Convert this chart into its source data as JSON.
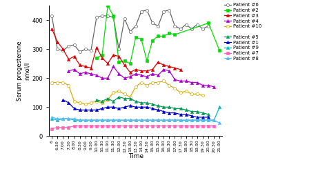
{
  "time_labels": [
    "6",
    "6.30",
    "7.00",
    "7.30",
    "8.00",
    "8.30",
    "9.00",
    "9.30",
    "10.00",
    "10.30",
    "11.00",
    "11.30",
    "12.00",
    "12.30",
    "13.00",
    "13.30",
    "14.00",
    "14.30",
    "15.00",
    "15.30",
    "16.00",
    "16.30",
    "17.00",
    "17.30",
    "18.00",
    "18.30",
    "19.00",
    "19.30",
    "20.00",
    "20.30",
    "21.00"
  ],
  "patients": {
    "Patient #6": {
      "color": "#666666",
      "marker": "o",
      "mfc": "white",
      "markersize": 3.0,
      "linewidth": 0.9,
      "data": [
        415,
        300,
        295,
        310,
        315,
        290,
        300,
        295,
        410,
        415,
        415,
        410,
        300,
        405,
        360,
        380,
        430,
        435,
        390,
        380,
        430,
        435,
        380,
        370,
        385,
        370,
        385,
        370,
        380,
        null,
        null
      ]
    },
    "Patient #2": {
      "color": "#00dd00",
      "marker": "s",
      "mfc": "#00dd00",
      "markersize": 3.0,
      "linewidth": 0.9,
      "data": [
        null,
        null,
        null,
        null,
        null,
        null,
        null,
        null,
        270,
        280,
        450,
        415,
        255,
        260,
        250,
        340,
        335,
        260,
        330,
        345,
        345,
        355,
        350,
        null,
        null,
        null,
        null,
        null,
        390,
        null,
        295
      ]
    },
    "Patient #3": {
      "color": "#dd0000",
      "marker": "^",
      "mfc": "#dd0000",
      "markersize": 3.0,
      "linewidth": 0.9,
      "data": [
        370,
        325,
        300,
        265,
        275,
        245,
        240,
        235,
        305,
        270,
        250,
        280,
        275,
        245,
        220,
        230,
        225,
        225,
        230,
        255,
        245,
        240,
        235,
        230,
        null,
        null,
        null,
        null,
        null,
        null,
        null
      ]
    },
    "Patient #4": {
      "color": "#aa00cc",
      "marker": "^",
      "mfc": "#aa00cc",
      "markersize": 3.0,
      "linewidth": 0.9,
      "data": [
        null,
        null,
        null,
        225,
        230,
        215,
        220,
        215,
        210,
        200,
        200,
        240,
        215,
        200,
        205,
        215,
        210,
        205,
        215,
        210,
        230,
        225,
        195,
        190,
        190,
        185,
        185,
        175,
        175,
        170,
        null
      ]
    },
    "Patient #10": {
      "color": "#ddaa00",
      "marker": "o",
      "mfc": "white",
      "markersize": 3.0,
      "linewidth": 0.9,
      "data": [
        185,
        185,
        185,
        175,
        120,
        115,
        110,
        115,
        120,
        115,
        125,
        150,
        155,
        145,
        135,
        170,
        185,
        175,
        185,
        185,
        190,
        175,
        165,
        150,
        155,
        145,
        145,
        140,
        null,
        null,
        null
      ]
    },
    "Patient #5": {
      "color": "#009955",
      "marker": "^",
      "mfc": "#009955",
      "markersize": 3.0,
      "linewidth": 0.9,
      "data": [
        null,
        null,
        null,
        null,
        null,
        null,
        null,
        null,
        125,
        120,
        130,
        120,
        135,
        130,
        130,
        120,
        115,
        115,
        110,
        105,
        100,
        100,
        95,
        95,
        90,
        85,
        85,
        80,
        75,
        null,
        null
      ]
    },
    "Patient #1": {
      "color": "#0000cc",
      "marker": "^",
      "mfc": "#0000cc",
      "markersize": 3.0,
      "linewidth": 0.9,
      "data": [
        null,
        null,
        125,
        115,
        95,
        90,
        90,
        90,
        90,
        95,
        100,
        100,
        95,
        100,
        105,
        100,
        100,
        100,
        95,
        90,
        85,
        80,
        80,
        75,
        75,
        70,
        65,
        65,
        65,
        null,
        null
      ]
    },
    "Patient #9": {
      "color": "#00bbbb",
      "marker": "^",
      "mfc": "#00bbbb",
      "markersize": 3.0,
      "linewidth": 0.9,
      "data": [
        60,
        55,
        60,
        60,
        55,
        55,
        55,
        55,
        55,
        55,
        55,
        55,
        55,
        55,
        55,
        55,
        55,
        55,
        55,
        55,
        55,
        55,
        55,
        55,
        55,
        55,
        55,
        55,
        55,
        55,
        100
      ]
    },
    "Patient #7": {
      "color": "#ff66bb",
      "marker": "s",
      "mfc": "#ff66bb",
      "markersize": 3.0,
      "linewidth": 0.9,
      "data": [
        25,
        30,
        30,
        30,
        35,
        35,
        35,
        35,
        35,
        35,
        35,
        35,
        35,
        35,
        35,
        35,
        35,
        35,
        35,
        35,
        35,
        35,
        35,
        35,
        35,
        35,
        35,
        35,
        35,
        35,
        null
      ]
    },
    "Patient #8": {
      "color": "#55bbff",
      "marker": "^",
      "mfc": "#55bbff",
      "markersize": 3.0,
      "linewidth": 0.9,
      "data": [
        65,
        60,
        60,
        60,
        60,
        55,
        55,
        55,
        55,
        55,
        55,
        55,
        55,
        55,
        55,
        55,
        55,
        55,
        55,
        55,
        55,
        55,
        55,
        55,
        55,
        55,
        55,
        55,
        55,
        55,
        45
      ]
    }
  },
  "ylabel": "Serum progesterone\nnmol/l",
  "xlabel": "Time",
  "ylim": [
    0,
    450
  ],
  "yticks": [
    0,
    100,
    200,
    300,
    400
  ],
  "legend_order": [
    "Patient #6",
    "Patient #2",
    "Patient #3",
    "Patient #4",
    "Patient #10",
    "Patient #5",
    "Patient #1",
    "Patient #9",
    "Patient #7",
    "Patient #8"
  ],
  "legend_group1": [
    "Patient #6",
    "Patient #2",
    "Patient #3",
    "Patient #4",
    "Patient #10"
  ],
  "legend_group2": [
    "Patient #5",
    "Patient #1",
    "Patient #9",
    "Patient #7",
    "Patient #8"
  ]
}
